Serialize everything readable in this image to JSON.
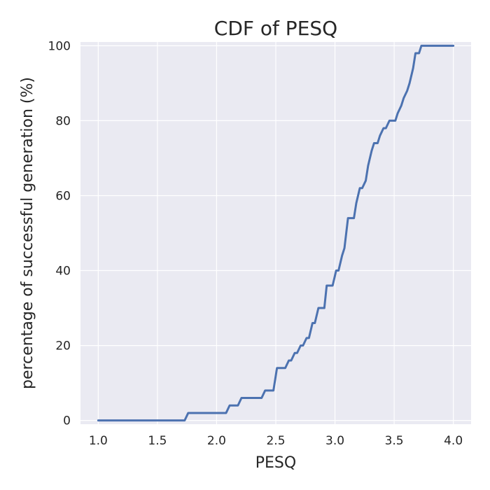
{
  "chart_data": {
    "type": "line",
    "title": "CDF of PESQ",
    "xlabel": "PESQ",
    "ylabel": "percentage of successful generation (%)",
    "xlim": [
      0.85,
      4.15
    ],
    "ylim": [
      -1,
      101
    ],
    "xticks": [
      1.0,
      1.5,
      2.0,
      2.5,
      3.0,
      3.5,
      4.0
    ],
    "xtick_labels": [
      "1.0",
      "1.5",
      "2.0",
      "2.5",
      "3.0",
      "3.5",
      "4.0"
    ],
    "yticks": [
      0,
      20,
      40,
      60,
      80,
      100
    ],
    "ytick_labels": [
      "0",
      "20",
      "40",
      "60",
      "80",
      "100"
    ],
    "grid": true,
    "colors": {
      "line": "#4c72b0",
      "background": "#eaeaf2",
      "grid": "#ffffff"
    },
    "series": [
      {
        "x": [
          1.0,
          1.73,
          1.76,
          2.08,
          2.11,
          2.18,
          2.21,
          2.38,
          2.41,
          2.48,
          2.51,
          2.58,
          2.61,
          2.63,
          2.66,
          2.68,
          2.71,
          2.73,
          2.76,
          2.78,
          2.81,
          2.83,
          2.86,
          2.91,
          2.93,
          2.98,
          3.01,
          3.03,
          3.06,
          3.08,
          3.11,
          3.16,
          3.18,
          3.21,
          3.23,
          3.26,
          3.28,
          3.31,
          3.33,
          3.36,
          3.38,
          3.41,
          3.43,
          3.46,
          3.48,
          3.51,
          3.53,
          3.56,
          3.58,
          3.61,
          3.63,
          3.66,
          3.68,
          3.71,
          3.73,
          3.76,
          3.78,
          3.81,
          4.0
        ],
        "y": [
          0,
          0,
          2,
          2,
          4,
          4,
          6,
          6,
          8,
          8,
          14,
          14,
          16,
          16,
          18,
          18,
          20,
          20,
          22,
          22,
          26,
          26,
          30,
          30,
          36,
          36,
          40,
          40,
          44,
          46,
          54,
          54,
          58,
          62,
          62,
          64,
          68,
          72,
          74,
          74,
          76,
          78,
          78,
          80,
          80,
          80,
          82,
          84,
          86,
          88,
          90,
          94,
          98,
          98,
          100,
          100,
          100,
          100,
          100
        ]
      }
    ]
  }
}
